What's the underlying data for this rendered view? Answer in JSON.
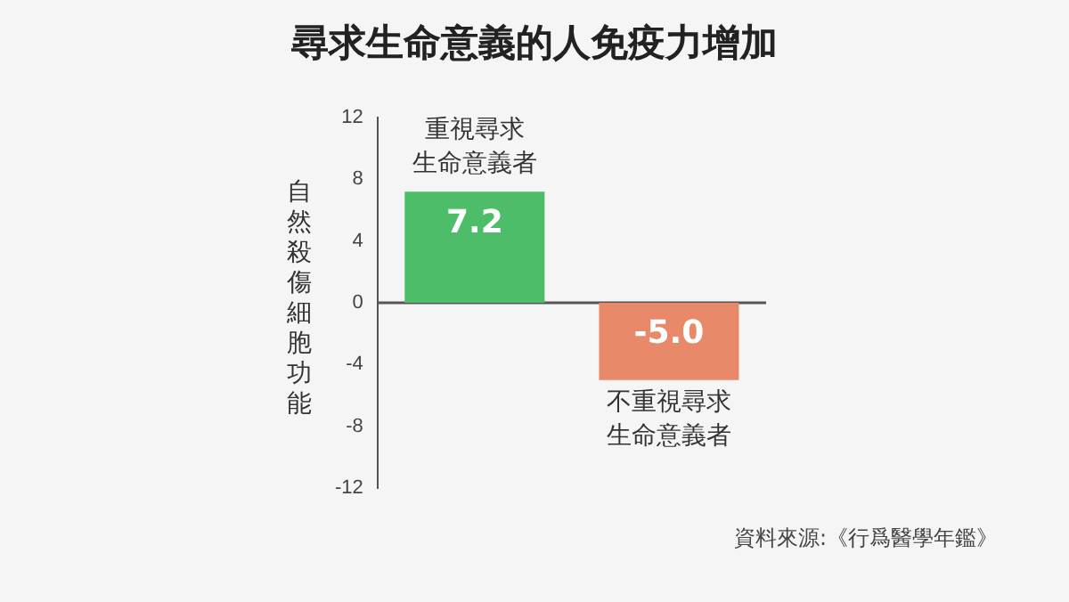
{
  "chart_data": {
    "type": "bar",
    "title": "尋求生命意義的人免疫力增加",
    "ylabel": "自然殺傷細胞功能",
    "categories": [
      "重視尋求生命意義者",
      "不重視尋求生命意義者"
    ],
    "values": [
      7.2,
      -5.0
    ],
    "colors": [
      "#4dbd6a",
      "#e8896a"
    ],
    "value_labels": [
      "7.2",
      "-5.0"
    ],
    "ref_lines": [
      {
        "axis": "y",
        "value": 0,
        "color": "#555555"
      }
    ],
    "ylim": [
      -12,
      12
    ],
    "yticks": [
      -12,
      -8,
      -4,
      0,
      4,
      8,
      12
    ],
    "grid": false,
    "legend": false,
    "annotations": [
      "資料來源:《行爲醫學年鑑》"
    ]
  }
}
